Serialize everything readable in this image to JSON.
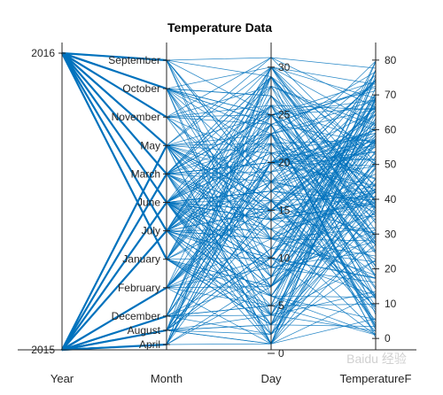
{
  "chart_data": {
    "type": "parallel-coordinates",
    "title": "Temperature Data",
    "color": "#0072BD",
    "grid": false,
    "axes": [
      {
        "name": "Year",
        "kind": "categorical",
        "ticks": [
          "2016",
          "2015"
        ],
        "positions": [
          1,
          0
        ]
      },
      {
        "name": "Month",
        "kind": "categorical",
        "ticks": [
          "September",
          "October",
          "November",
          "May",
          "March",
          "June",
          "July",
          "January",
          "February",
          "December",
          "August",
          "April"
        ],
        "positions": [
          1,
          0.9,
          0.8,
          0.7,
          0.6,
          0.5,
          0.4,
          0.3,
          0.2,
          0.1,
          0.05,
          0
        ]
      },
      {
        "name": "Day",
        "kind": "numeric",
        "ticks": [
          0,
          5,
          10,
          15,
          20,
          25,
          30
        ],
        "range": [
          0,
          31
        ]
      },
      {
        "name": "TemperatureF",
        "kind": "numeric",
        "ticks": [
          0,
          10,
          20,
          30,
          40,
          50,
          60,
          70,
          80
        ],
        "range": [
          -2,
          82
        ]
      }
    ],
    "observations": {
      "count": 220,
      "years": [
        "2015",
        "2016"
      ],
      "months_2016": [
        "September",
        "October",
        "November",
        "May",
        "March",
        "June",
        "July",
        "January"
      ],
      "months_2015": [
        "February",
        "December",
        "August",
        "April",
        "May",
        "June",
        "July",
        "March"
      ],
      "day_range": [
        1,
        31
      ],
      "temperature_range": [
        0,
        80
      ]
    }
  },
  "watermark": "Baidu 经验"
}
